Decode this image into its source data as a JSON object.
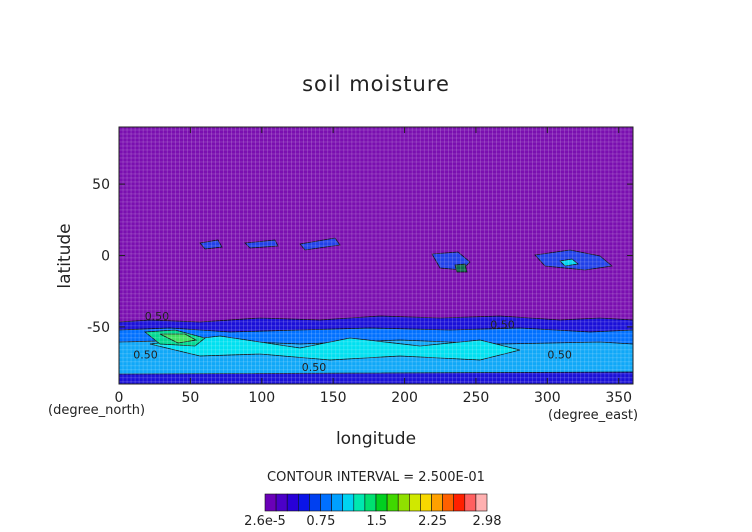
{
  "chart_data": {
    "type": "heatmap",
    "title": "soil moisture",
    "xlabel": "longitude",
    "ylabel": "latitude",
    "x_unit": "(degree_east)",
    "y_unit": "(degree_north)",
    "xlim": [
      0,
      360
    ],
    "ylim": [
      -90,
      90
    ],
    "x_ticks": [
      0,
      50,
      100,
      150,
      200,
      250,
      300,
      350
    ],
    "y_ticks": [
      -50,
      0,
      50
    ],
    "x_tick_labels": [
      "0",
      "50",
      "100",
      "150",
      "200",
      "250",
      "300",
      "350"
    ],
    "y_tick_labels": [
      "-50",
      "0",
      "50"
    ],
    "contour_interval_text": "CONTOUR INTERVAL = 2.500E-01",
    "contour_labels": [
      "0.50",
      "0.50",
      "0.50",
      "0.50",
      "0.50"
    ],
    "colorbar": {
      "tick_labels": [
        "2.6e-5",
        "0.75",
        "1.5",
        "2.25",
        "2.98"
      ],
      "tick_values": [
        2.6e-05,
        0.75,
        1.5,
        2.25,
        2.98
      ],
      "min": 2.6e-05,
      "max": 2.98,
      "colors": [
        "#6a00b8",
        "#4b00c8",
        "#2800d8",
        "#0a14e8",
        "#0040f0",
        "#0070ff",
        "#00a0ff",
        "#00d4f0",
        "#00e8b0",
        "#00e070",
        "#00d020",
        "#40d800",
        "#90e000",
        "#d0e800",
        "#f8d800",
        "#ffa000",
        "#ff6000",
        "#ff2000",
        "#ff6060",
        "#ffb0b0"
      ]
    },
    "grid": true
  }
}
